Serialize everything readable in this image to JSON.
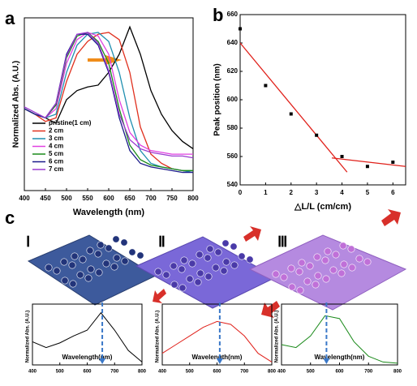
{
  "chart_data": [
    {
      "type": "line",
      "panel_label": "a",
      "x_label": "Wavelength (nm)",
      "y_label": "Normalized Abs. (A.U.)",
      "x": [
        400,
        425,
        450,
        475,
        500,
        525,
        550,
        575,
        600,
        625,
        650,
        675,
        700,
        725,
        750,
        775,
        800
      ],
      "xlim": [
        400,
        800
      ],
      "xticks": [
        400,
        450,
        500,
        550,
        600,
        650,
        700,
        750,
        800
      ],
      "ylim": [
        0.1,
        1.05
      ],
      "series": [
        {
          "name": "pristine(1 cm)",
          "color": "#000000",
          "values": [
            0.55,
            0.52,
            0.5,
            0.47,
            0.6,
            0.65,
            0.67,
            0.68,
            0.75,
            0.85,
            1.0,
            0.85,
            0.65,
            0.52,
            0.43,
            0.37,
            0.33
          ]
        },
        {
          "name": "2 cm",
          "color": "#e0301e",
          "values": [
            0.55,
            0.52,
            0.48,
            0.5,
            0.7,
            0.85,
            0.92,
            0.96,
            0.97,
            0.93,
            0.75,
            0.45,
            0.3,
            0.25,
            0.22,
            0.21,
            0.2
          ]
        },
        {
          "name": "3 cm",
          "color": "#1f8fb0",
          "values": [
            0.55,
            0.52,
            0.5,
            0.52,
            0.75,
            0.9,
            0.96,
            0.97,
            0.92,
            0.75,
            0.5,
            0.32,
            0.25,
            0.23,
            0.22,
            0.21,
            0.2
          ]
        },
        {
          "name": "4 cm",
          "color": "#e040e0",
          "values": [
            0.55,
            0.52,
            0.5,
            0.55,
            0.8,
            0.93,
            0.97,
            0.95,
            0.85,
            0.6,
            0.42,
            0.35,
            0.32,
            0.31,
            0.3,
            0.3,
            0.3
          ]
        },
        {
          "name": "5 cm",
          "color": "#1a8a1a",
          "values": [
            0.55,
            0.52,
            0.5,
            0.57,
            0.83,
            0.95,
            0.97,
            0.92,
            0.8,
            0.55,
            0.35,
            0.27,
            0.24,
            0.23,
            0.22,
            0.21,
            0.21
          ]
        },
        {
          "name": "6 cm",
          "color": "#1a1a8a",
          "values": [
            0.55,
            0.52,
            0.5,
            0.58,
            0.85,
            0.96,
            0.96,
            0.9,
            0.75,
            0.5,
            0.32,
            0.25,
            0.23,
            0.22,
            0.21,
            0.2,
            0.2
          ]
        },
        {
          "name": "7 cm",
          "color": "#9a3ad0",
          "values": [
            0.56,
            0.53,
            0.5,
            0.58,
            0.84,
            0.96,
            0.97,
            0.91,
            0.76,
            0.52,
            0.38,
            0.33,
            0.31,
            0.3,
            0.29,
            0.29,
            0.28
          ]
        }
      ]
    },
    {
      "type": "scatter",
      "panel_label": "b",
      "x_label": "△L/L (cm/cm)",
      "y_label": "Peak position (nm)",
      "x": [
        0,
        1,
        2,
        3,
        4,
        5,
        6
      ],
      "values": [
        650,
        610,
        590,
        575,
        560,
        553,
        556
      ],
      "color": "#000000",
      "xlim": [
        0,
        6.5
      ],
      "xticks": [
        0,
        1,
        2,
        3,
        4,
        5,
        6
      ],
      "ylim": [
        540,
        660
      ],
      "yticks": [
        540,
        560,
        580,
        600,
        620,
        640,
        660
      ],
      "fit_color": "#e0201a",
      "fit_lines": [
        {
          "x": [
            0,
            4.2
          ],
          "values": [
            640,
            549
          ]
        },
        {
          "x": [
            3.6,
            6.5
          ],
          "values": [
            559,
            553
          ]
        }
      ]
    },
    {
      "type": "line",
      "panel_label": "c",
      "stage_label": "Ⅰ",
      "x_label": "Wavelength(nm)",
      "y_label": "Normalized Abs. (A.U.)",
      "x": [
        400,
        450,
        500,
        550,
        600,
        650,
        700,
        750,
        800
      ],
      "xlim": [
        400,
        800
      ],
      "xticks": [
        400,
        500,
        600,
        700,
        800
      ],
      "ylim": [
        0,
        1.05
      ],
      "peak": 655,
      "series": [
        {
          "color": "#000000",
          "values": [
            0.4,
            0.3,
            0.38,
            0.5,
            0.6,
            0.9,
            0.6,
            0.25,
            0.05
          ]
        }
      ]
    },
    {
      "type": "line",
      "stage_label": "Ⅱ",
      "x_label": "Wavelength(nm)",
      "y_label": "Normalized Abs. (A.U.)",
      "x": [
        400,
        450,
        500,
        550,
        600,
        650,
        700,
        750,
        800
      ],
      "xlim": [
        400,
        800
      ],
      "xticks": [
        400,
        500,
        600,
        700,
        800
      ],
      "ylim": [
        0,
        1.05
      ],
      "peak": 610,
      "series": [
        {
          "color": "#e0201a",
          "values": [
            0.2,
            0.35,
            0.5,
            0.65,
            0.75,
            0.7,
            0.5,
            0.2,
            0.05
          ]
        }
      ]
    },
    {
      "type": "line",
      "stage_label": "Ⅲ",
      "x_label": "Wavelength(nm)",
      "y_label": "Normalized Abs. (A.U.)",
      "x": [
        400,
        450,
        500,
        550,
        600,
        650,
        700,
        750,
        800
      ],
      "xlim": [
        400,
        800
      ],
      "xticks": [
        400,
        500,
        600,
        700,
        800
      ],
      "ylim": [
        0,
        1.05
      ],
      "peak": 555,
      "series": [
        {
          "color": "#1a8a1a",
          "values": [
            0.35,
            0.3,
            0.5,
            0.85,
            0.8,
            0.4,
            0.15,
            0.05,
            0.03
          ]
        }
      ]
    }
  ]
}
